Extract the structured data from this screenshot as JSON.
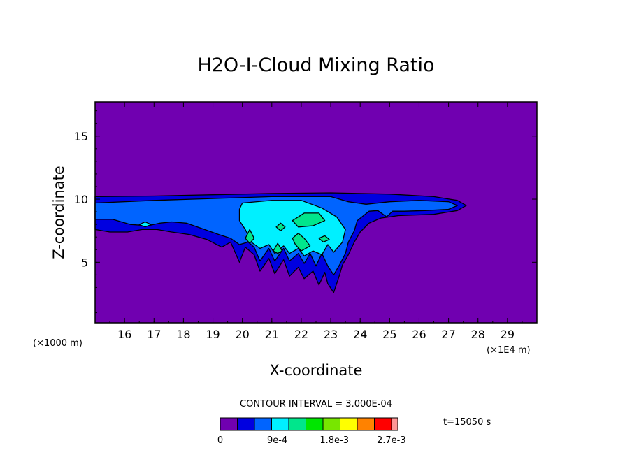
{
  "chart_data": {
    "type": "contour",
    "title": "H2O-I-Cloud Mixing Ratio",
    "xlabel": "X-coordinate",
    "ylabel": "Z-coordinate",
    "x_unit_label": "(×1E4 m)",
    "y_unit_label": "(×1000 m)",
    "x_ticks": [
      16,
      17,
      18,
      19,
      20,
      21,
      22,
      23,
      24,
      25,
      26,
      27,
      28,
      29
    ],
    "y_ticks": [
      5,
      10,
      15
    ],
    "xlim": [
      15,
      30
    ],
    "ylim": [
      0.2,
      17.7
    ],
    "contour_interval_label": "CONTOUR INTERVAL = 3.000E-04",
    "time_label": "t=15050 s",
    "colorbar": {
      "colors": [
        "#7000b0",
        "#0000e0",
        "#0064ff",
        "#00f0ff",
        "#00e68c",
        "#00e600",
        "#78e600",
        "#ffff00",
        "#ff8200",
        "#ff0000",
        "#ff9696"
      ],
      "tick_labels": [
        "0",
        "9e-4",
        "1.8e-3",
        "2.7e-3"
      ],
      "tick_levels": [
        0,
        3,
        6,
        9
      ]
    },
    "regions": [
      {
        "level": 1,
        "points": [
          [
            15,
            10.2
          ],
          [
            17,
            10.25
          ],
          [
            19,
            10.35
          ],
          [
            21,
            10.45
          ],
          [
            23,
            10.5
          ],
          [
            25,
            10.4
          ],
          [
            26.5,
            10.2
          ],
          [
            27.3,
            9.9
          ],
          [
            27.6,
            9.5
          ],
          [
            27.3,
            9.1
          ],
          [
            26.5,
            8.8
          ],
          [
            25.3,
            8.7
          ],
          [
            24.7,
            8.5
          ],
          [
            24.3,
            8.1
          ],
          [
            24,
            7.4
          ],
          [
            23.8,
            6.6
          ],
          [
            23.6,
            5.6
          ],
          [
            23.4,
            4.8
          ],
          [
            23.3,
            4
          ],
          [
            23.2,
            3.3
          ],
          [
            23.1,
            2.6
          ],
          [
            22.9,
            3.3
          ],
          [
            22.8,
            4.2
          ],
          [
            22.6,
            3.2
          ],
          [
            22.4,
            4.3
          ],
          [
            22.1,
            3.7
          ],
          [
            21.9,
            4.6
          ],
          [
            21.6,
            3.9
          ],
          [
            21.4,
            5.2
          ],
          [
            21.1,
            4.1
          ],
          [
            20.9,
            5.3
          ],
          [
            20.6,
            4.3
          ],
          [
            20.4,
            5.6
          ],
          [
            20.1,
            6.2
          ],
          [
            19.9,
            5
          ],
          [
            19.6,
            6.6
          ],
          [
            19.3,
            6.2
          ],
          [
            18.8,
            6.8
          ],
          [
            18.2,
            7.2
          ],
          [
            17.6,
            7.4
          ],
          [
            17.1,
            7.6
          ],
          [
            16.6,
            7.6
          ],
          [
            16.1,
            7.4
          ],
          [
            15.5,
            7.4
          ],
          [
            15,
            7.6
          ]
        ]
      },
      {
        "level": 2,
        "points": [
          [
            15,
            9.7
          ],
          [
            17,
            9.9
          ],
          [
            19,
            10.05
          ],
          [
            21,
            10.2
          ],
          [
            23,
            10.2
          ],
          [
            23.6,
            9.8
          ],
          [
            24.2,
            9.6
          ],
          [
            25,
            9.8
          ],
          [
            26,
            9.9
          ],
          [
            27,
            9.8
          ],
          [
            27.3,
            9.5
          ],
          [
            27,
            9.2
          ],
          [
            26.2,
            9.1
          ],
          [
            25.5,
            9.05
          ],
          [
            25.1,
            9.05
          ],
          [
            24.9,
            8.6
          ],
          [
            24.6,
            9.1
          ],
          [
            24.3,
            9.05
          ],
          [
            23.9,
            8.3
          ],
          [
            23.8,
            7.5
          ],
          [
            23.6,
            6.6
          ],
          [
            23.5,
            5.7
          ],
          [
            23.3,
            4.8
          ],
          [
            23.1,
            4
          ],
          [
            22.9,
            4.7
          ],
          [
            22.7,
            5.7
          ],
          [
            22.5,
            4.7
          ],
          [
            22.3,
            5.7
          ],
          [
            22.1,
            4.9
          ],
          [
            21.9,
            5.7
          ],
          [
            21.6,
            5.1
          ],
          [
            21.4,
            6.1
          ],
          [
            21.1,
            5.1
          ],
          [
            20.9,
            6.1
          ],
          [
            20.6,
            5.1
          ],
          [
            20.4,
            6.2
          ],
          [
            20.2,
            6.6
          ],
          [
            19.9,
            6.4
          ],
          [
            19.6,
            6.9
          ],
          [
            19.2,
            7.2
          ],
          [
            18.6,
            7.7
          ],
          [
            18.1,
            8.1
          ],
          [
            17.6,
            8.2
          ],
          [
            17.2,
            8.1
          ],
          [
            16.8,
            7.9
          ],
          [
            16.2,
            8
          ],
          [
            15.6,
            8.4
          ],
          [
            15,
            8.4
          ]
        ]
      },
      {
        "level": 3,
        "points": [
          [
            20,
            9.7
          ],
          [
            21,
            9.9
          ],
          [
            22,
            9.9
          ],
          [
            22.7,
            9.3
          ],
          [
            23.2,
            8.6
          ],
          [
            23.5,
            7.6
          ],
          [
            23.4,
            6.6
          ],
          [
            23.1,
            5.8
          ],
          [
            22.9,
            6.4
          ],
          [
            22.7,
            5.6
          ],
          [
            22.4,
            5.9
          ],
          [
            22.1,
            5.5
          ],
          [
            21.9,
            6.1
          ],
          [
            21.6,
            5.7
          ],
          [
            21.4,
            6.3
          ],
          [
            21.1,
            5.7
          ],
          [
            20.9,
            6.4
          ],
          [
            20.6,
            6.1
          ],
          [
            20.3,
            6.6
          ],
          [
            20.1,
            7.6
          ],
          [
            19.9,
            8.3
          ],
          [
            19.9,
            9.2
          ]
        ]
      },
      {
        "level": 4,
        "points": [
          [
            21.7,
            8.3
          ],
          [
            22.1,
            8.9
          ],
          [
            22.6,
            8.9
          ],
          [
            22.8,
            8.3
          ],
          [
            22.4,
            7.9
          ],
          [
            21.9,
            7.8
          ]
        ]
      },
      {
        "level": 4,
        "points": [
          [
            21.9,
            7.3
          ],
          [
            22.1,
            6.9
          ],
          [
            22.3,
            6.3
          ],
          [
            22,
            5.9
          ],
          [
            21.8,
            6.4
          ],
          [
            21.7,
            6.9
          ]
        ]
      },
      {
        "level": 4,
        "points": [
          [
            20.1,
            6.9
          ],
          [
            20.25,
            7.6
          ],
          [
            20.4,
            6.9
          ],
          [
            20.25,
            6.5
          ]
        ]
      },
      {
        "level": 4,
        "points": [
          [
            21.05,
            5.9
          ],
          [
            21.2,
            6.5
          ],
          [
            21.35,
            5.9
          ],
          [
            21.2,
            5.7
          ]
        ]
      },
      {
        "level": 4,
        "points": [
          [
            21.15,
            7.8
          ],
          [
            21.3,
            8.1
          ],
          [
            21.45,
            7.8
          ],
          [
            21.3,
            7.5
          ]
        ]
      },
      {
        "level": 4,
        "points": [
          [
            22.6,
            6.9
          ],
          [
            22.8,
            7.1
          ],
          [
            22.95,
            6.8
          ],
          [
            22.75,
            6.6
          ]
        ]
      },
      {
        "level": 3,
        "points": [
          [
            16.5,
            8.0
          ],
          [
            16.7,
            8.2
          ],
          [
            16.9,
            8.0
          ],
          [
            16.7,
            7.8
          ]
        ]
      }
    ]
  }
}
